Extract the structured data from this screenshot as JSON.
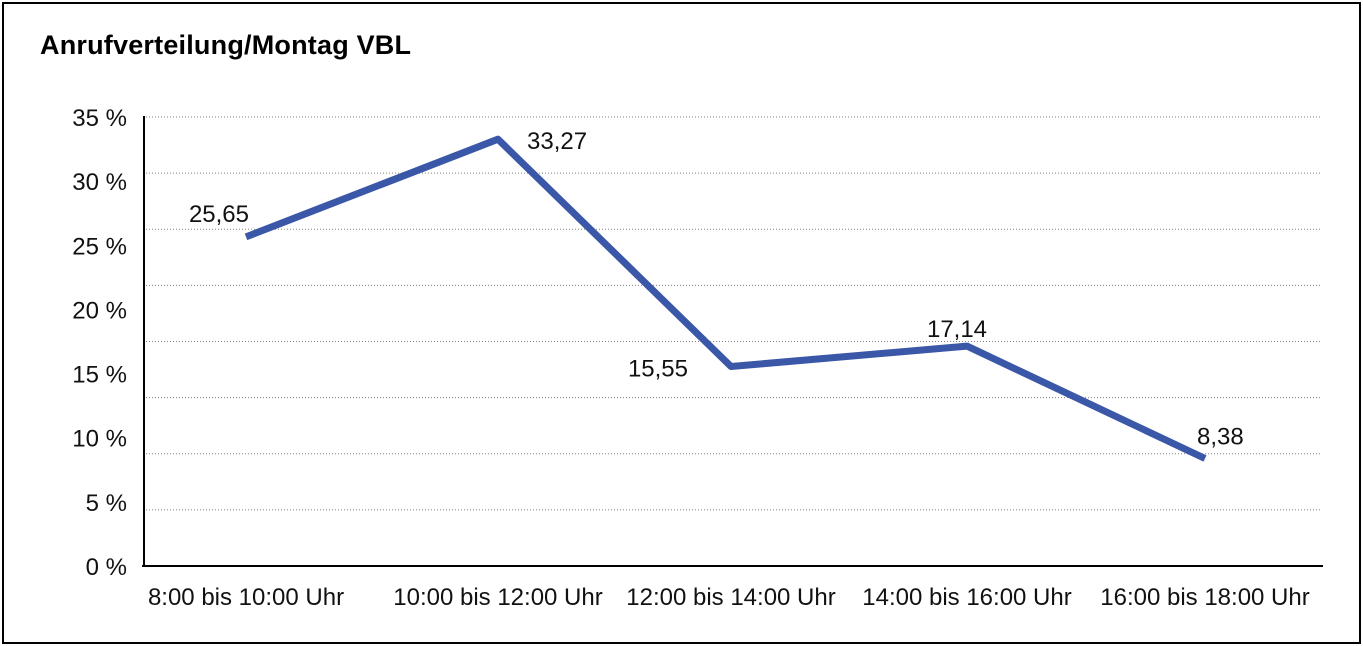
{
  "chart_data": {
    "type": "line",
    "title": "Anrufverteilung/Montag VBL",
    "categories": [
      "8:00 bis 10:00 Uhr",
      "10:00 bis 12:00 Uhr",
      "12:00 bis 14:00 Uhr",
      "14:00 bis 16:00 Uhr",
      "16:00 bis 18:00 Uhr"
    ],
    "values": [
      25.65,
      33.27,
      15.55,
      17.14,
      8.38
    ],
    "value_labels": [
      "25,65",
      "33,27",
      "15,55",
      "17,14",
      "8,38"
    ],
    "ytick_values": [
      0,
      5,
      10,
      15,
      20,
      25,
      30,
      35
    ],
    "ytick_labels": [
      "0 %",
      "5 %",
      "10 %",
      "15 %",
      "20 %",
      "25 %",
      "30 %",
      "35 %"
    ],
    "ylim": [
      0,
      35
    ],
    "xlabel": "",
    "ylabel": "",
    "legend": "none",
    "grid": "dotted-horizontal",
    "line_color": "#3A57A8",
    "axis_color": "#000000",
    "gridline_color": "#808080",
    "text_color": "#111111",
    "background": "#FFFFFF",
    "border_color": "#000000"
  }
}
